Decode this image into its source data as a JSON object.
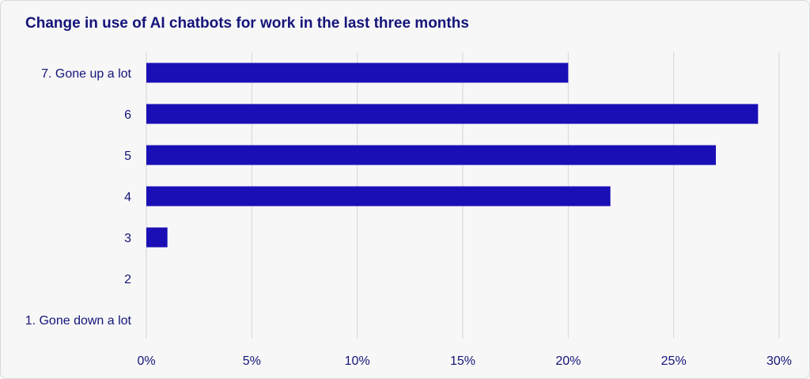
{
  "chart_data": {
    "type": "bar",
    "orientation": "horizontal",
    "title": "Change in use of AI chatbots for work in the last three months",
    "categories": [
      "7. Gone up a lot",
      "6",
      "5",
      "4",
      "3",
      "2",
      "1. Gone down a lot"
    ],
    "values": [
      20,
      29,
      27,
      22,
      1,
      0,
      0
    ],
    "x_ticks": [
      "0%",
      "5%",
      "10%",
      "15%",
      "20%",
      "25%",
      "30%"
    ],
    "xlim": [
      0,
      30
    ],
    "x_unit": "%",
    "grid": true,
    "bar_color": "#1a0fb5",
    "grid_color": "#d6d6d6",
    "text_color": "#14147a",
    "background": "#f7f7f7"
  }
}
